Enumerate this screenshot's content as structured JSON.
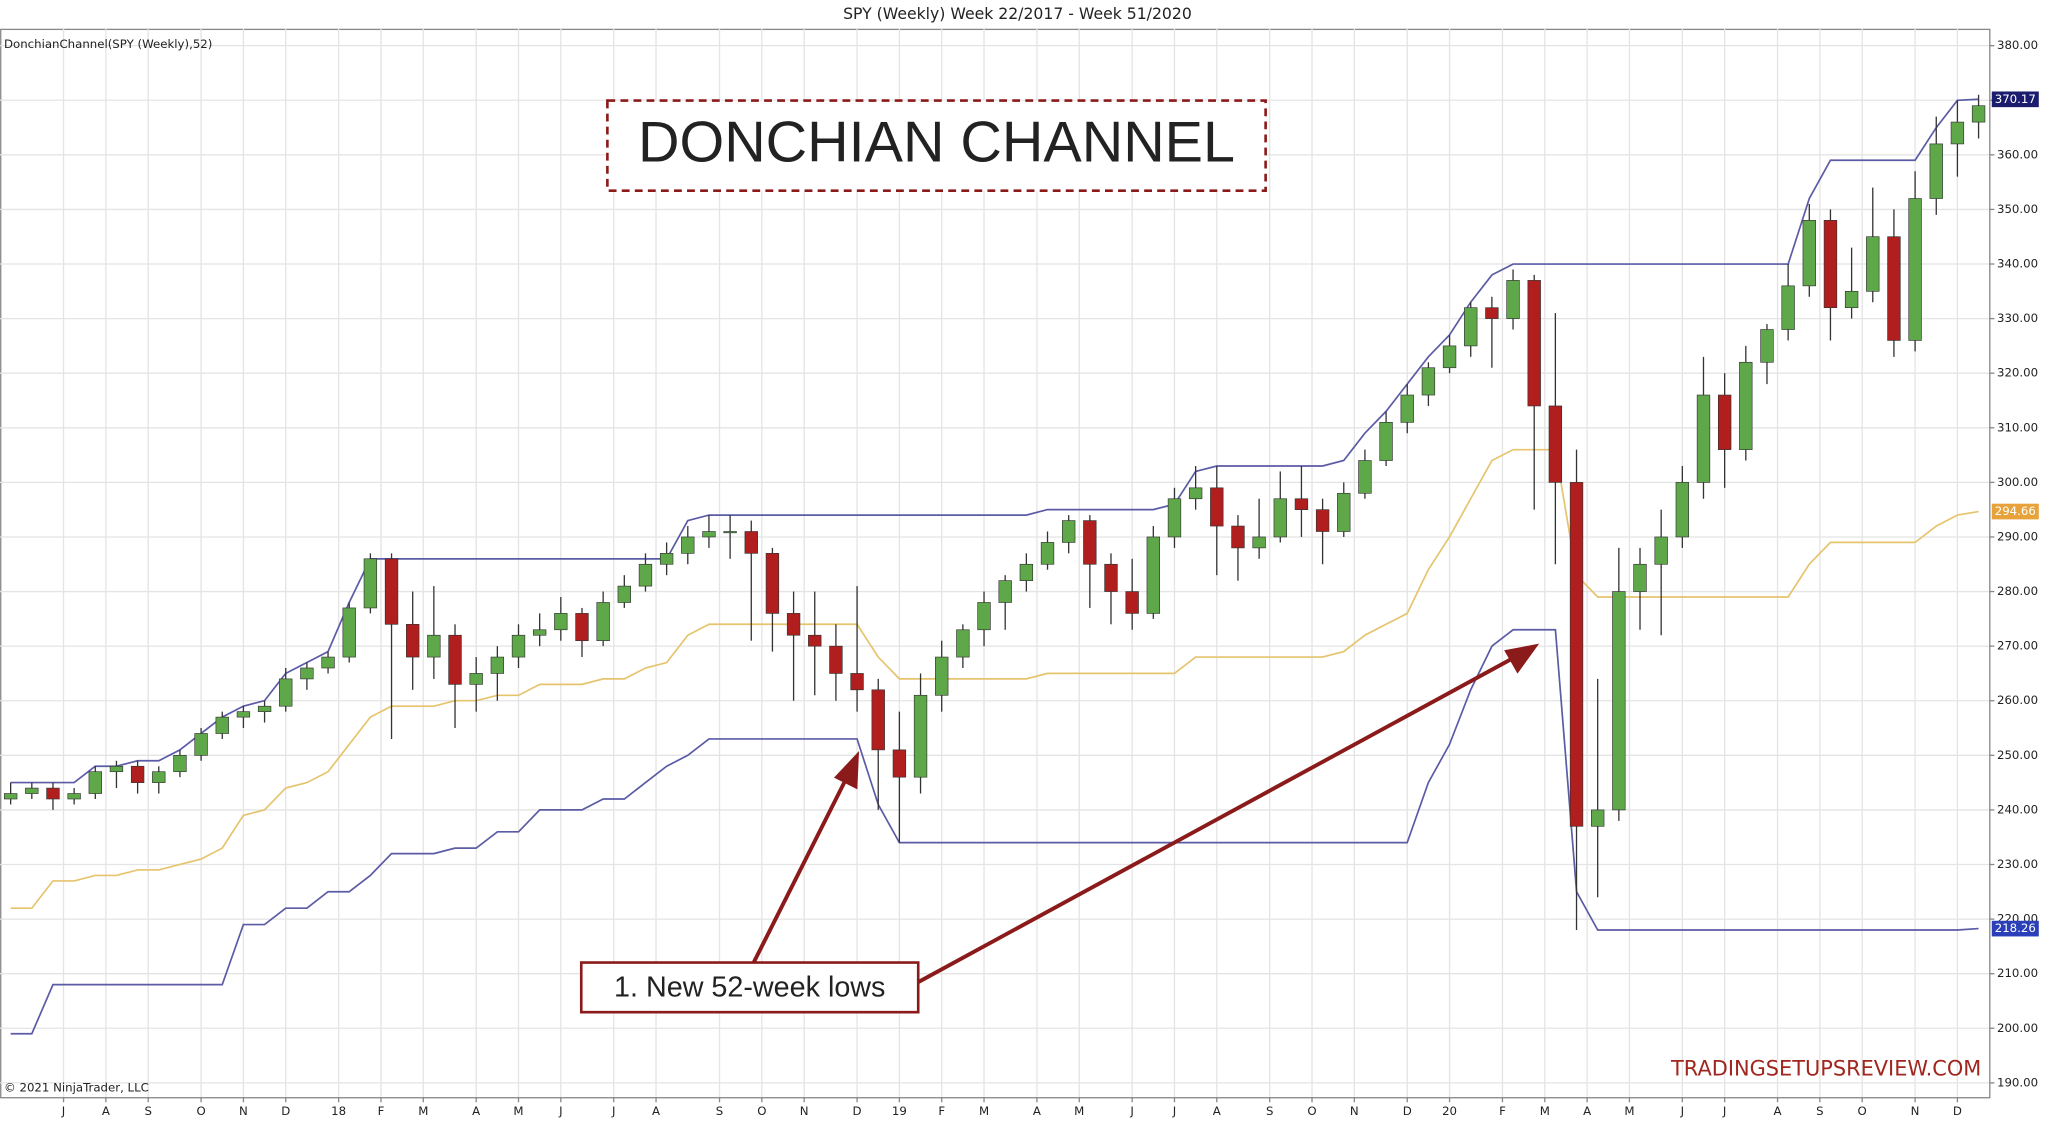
{
  "chart_data": {
    "type": "candlestick",
    "title": "SPY (Weekly)  Week 22/2017 - Week 51/2020",
    "indicator_label": "DonchianChannel(SPY (Weekly),52)",
    "copyright": "© 2021 NinjaTrader, LLC",
    "annotations": {
      "headline": "DONCHIAN CHANNEL",
      "note": "1. New 52-week lows",
      "watermark": "TRADINGSETUPSREVIEW.COM"
    },
    "up_color": "#5fa84a",
    "down_color": "#b01e1e",
    "grid": true,
    "xlim": [
      -1,
      187
    ],
    "ylim": [
      187.4,
      383.1
    ],
    "xticks": [
      {
        "value": 5,
        "label": "J"
      },
      {
        "value": 9,
        "label": "A"
      },
      {
        "value": 13,
        "label": "S"
      },
      {
        "value": 18,
        "label": "O"
      },
      {
        "value": 22,
        "label": "N"
      },
      {
        "value": 26,
        "label": "D"
      },
      {
        "value": 31,
        "label": "18"
      },
      {
        "value": 35,
        "label": "F"
      },
      {
        "value": 39,
        "label": "M"
      },
      {
        "value": 44,
        "label": "A"
      },
      {
        "value": 48,
        "label": "M"
      },
      {
        "value": 52,
        "label": "J"
      },
      {
        "value": 57,
        "label": "J"
      },
      {
        "value": 61,
        "label": "A"
      },
      {
        "value": 67,
        "label": "S"
      },
      {
        "value": 71,
        "label": "O"
      },
      {
        "value": 75,
        "label": "N"
      },
      {
        "value": 80,
        "label": "D"
      },
      {
        "value": 84,
        "label": "19"
      },
      {
        "value": 88,
        "label": "F"
      },
      {
        "value": 92,
        "label": "M"
      },
      {
        "value": 97,
        "label": "A"
      },
      {
        "value": 101,
        "label": "M"
      },
      {
        "value": 106,
        "label": "J"
      },
      {
        "value": 110,
        "label": "J"
      },
      {
        "value": 114,
        "label": "A"
      },
      {
        "value": 119,
        "label": "S"
      },
      {
        "value": 123,
        "label": "O"
      },
      {
        "value": 127,
        "label": "N"
      },
      {
        "value": 132,
        "label": "D"
      },
      {
        "value": 136,
        "label": "20"
      },
      {
        "value": 141,
        "label": "F"
      },
      {
        "value": 145,
        "label": "M"
      },
      {
        "value": 149,
        "label": "A"
      },
      {
        "value": 153,
        "label": "M"
      },
      {
        "value": 158,
        "label": "J"
      },
      {
        "value": 162,
        "label": "J"
      },
      {
        "value": 167,
        "label": "A"
      },
      {
        "value": 171,
        "label": "S"
      },
      {
        "value": 175,
        "label": "O"
      },
      {
        "value": 180,
        "label": "N"
      },
      {
        "value": 184,
        "label": "D"
      }
    ],
    "yticks": [
      {
        "value": 190,
        "label": "190.00"
      },
      {
        "value": 200,
        "label": "200.00"
      },
      {
        "value": 210,
        "label": "210.00"
      },
      {
        "value": 220,
        "label": "220.00"
      },
      {
        "value": 230,
        "label": "230.00"
      },
      {
        "value": 240,
        "label": "240.00"
      },
      {
        "value": 250,
        "label": "250.00"
      },
      {
        "value": 260,
        "label": "260.00"
      },
      {
        "value": 270,
        "label": "270.00"
      },
      {
        "value": 280,
        "label": "280.00"
      },
      {
        "value": 290,
        "label": "290.00"
      },
      {
        "value": 300,
        "label": "300.00"
      },
      {
        "value": 310,
        "label": "310.00"
      },
      {
        "value": 320,
        "label": "320.00"
      },
      {
        "value": 330,
        "label": "330.00"
      },
      {
        "value": 340,
        "label": "340.00"
      },
      {
        "value": 350,
        "label": "350.00"
      },
      {
        "value": 360,
        "label": "360.00"
      },
      {
        "value": 370,
        "label": "370.00"
      },
      {
        "value": 380,
        "label": "380.00"
      }
    ],
    "x": [
      0,
      2,
      4,
      6,
      8,
      10,
      12,
      14,
      16,
      18,
      20,
      22,
      24,
      26,
      28,
      30,
      32,
      34,
      36,
      38,
      40,
      42,
      44,
      46,
      48,
      50,
      52,
      54,
      56,
      58,
      60,
      62,
      64,
      66,
      68,
      70,
      72,
      74,
      76,
      78,
      80,
      82,
      84,
      86,
      88,
      90,
      92,
      94,
      96,
      98,
      100,
      102,
      104,
      106,
      108,
      110,
      112,
      114,
      116,
      118,
      120,
      122,
      124,
      126,
      128,
      130,
      132,
      134,
      136,
      138,
      140,
      142,
      144,
      146,
      148,
      150,
      152,
      154,
      156,
      158,
      160,
      162,
      164,
      166,
      168,
      170,
      172,
      174,
      176,
      178,
      180,
      182,
      184,
      186
    ],
    "ohlc": [
      [
        242,
        245,
        241,
        243
      ],
      [
        243,
        245,
        242,
        244
      ],
      [
        244,
        245,
        240,
        242
      ],
      [
        242,
        244,
        241,
        243
      ],
      [
        243,
        248,
        242,
        247
      ],
      [
        247,
        249,
        244,
        248
      ],
      [
        248,
        249,
        243,
        245
      ],
      [
        245,
        248,
        243,
        247
      ],
      [
        247,
        251,
        246,
        250
      ],
      [
        250,
        255,
        249,
        254
      ],
      [
        254,
        258,
        253,
        257
      ],
      [
        257,
        259,
        255,
        258
      ],
      [
        258,
        260,
        256,
        259
      ],
      [
        259,
        266,
        258,
        264
      ],
      [
        264,
        267,
        262,
        266
      ],
      [
        266,
        269,
        265,
        268
      ],
      [
        268,
        278,
        267,
        277
      ],
      [
        277,
        287,
        276,
        286
      ],
      [
        286,
        287,
        253,
        274
      ],
      [
        274,
        280,
        262,
        268
      ],
      [
        268,
        281,
        264,
        272
      ],
      [
        272,
        274,
        255,
        263
      ],
      [
        263,
        268,
        258,
        265
      ],
      [
        265,
        270,
        260,
        268
      ],
      [
        268,
        274,
        266,
        272
      ],
      [
        272,
        276,
        270,
        273
      ],
      [
        273,
        279,
        271,
        276
      ],
      [
        276,
        277,
        268,
        271
      ],
      [
        271,
        280,
        270,
        278
      ],
      [
        278,
        283,
        277,
        281
      ],
      [
        281,
        287,
        280,
        285
      ],
      [
        285,
        289,
        283,
        287
      ],
      [
        287,
        292,
        285,
        290
      ],
      [
        290,
        294,
        288,
        291
      ],
      [
        291,
        294,
        286,
        291
      ],
      [
        291,
        293,
        271,
        287
      ],
      [
        287,
        288,
        269,
        276
      ],
      [
        276,
        280,
        260,
        272
      ],
      [
        272,
        280,
        261,
        270
      ],
      [
        270,
        274,
        260,
        265
      ],
      [
        265,
        281,
        258,
        262
      ],
      [
        262,
        264,
        240,
        251
      ],
      [
        251,
        258,
        234,
        246
      ],
      [
        246,
        265,
        243,
        261
      ],
      [
        261,
        271,
        258,
        268
      ],
      [
        268,
        274,
        266,
        273
      ],
      [
        273,
        280,
        270,
        278
      ],
      [
        278,
        283,
        273,
        282
      ],
      [
        282,
        287,
        280,
        285
      ],
      [
        285,
        291,
        284,
        289
      ],
      [
        289,
        294,
        287,
        293
      ],
      [
        293,
        294,
        277,
        285
      ],
      [
        285,
        287,
        274,
        280
      ],
      [
        280,
        286,
        273,
        276
      ],
      [
        276,
        292,
        275,
        290
      ],
      [
        290,
        299,
        288,
        297
      ],
      [
        297,
        303,
        295,
        299
      ],
      [
        299,
        303,
        283,
        292
      ],
      [
        292,
        294,
        282,
        288
      ],
      [
        288,
        297,
        286,
        290
      ],
      [
        290,
        302,
        289,
        297
      ],
      [
        297,
        303,
        290,
        295
      ],
      [
        295,
        297,
        285,
        291
      ],
      [
        291,
        300,
        290,
        298
      ],
      [
        298,
        306,
        297,
        304
      ],
      [
        304,
        313,
        303,
        311
      ],
      [
        311,
        318,
        309,
        316
      ],
      [
        316,
        322,
        314,
        321
      ],
      [
        321,
        327,
        320,
        325
      ],
      [
        325,
        333,
        323,
        332
      ],
      [
        332,
        334,
        321,
        330
      ],
      [
        330,
        339,
        328,
        337
      ],
      [
        337,
        338,
        295,
        314
      ],
      [
        314,
        331,
        285,
        300
      ],
      [
        300,
        306,
        218,
        237
      ],
      [
        237,
        264,
        224,
        240
      ],
      [
        240,
        288,
        238,
        280
      ],
      [
        280,
        288,
        273,
        285
      ],
      [
        285,
        295,
        272,
        290
      ],
      [
        290,
        303,
        288,
        300
      ],
      [
        300,
        323,
        297,
        316
      ],
      [
        316,
        320,
        299,
        306
      ],
      [
        306,
        325,
        304,
        322
      ],
      [
        322,
        329,
        318,
        328
      ],
      [
        328,
        340,
        326,
        336
      ],
      [
        336,
        351,
        334,
        348
      ],
      [
        348,
        350,
        326,
        332
      ],
      [
        332,
        343,
        330,
        335
      ],
      [
        335,
        354,
        333,
        345
      ],
      [
        345,
        350,
        323,
        326
      ],
      [
        326,
        357,
        324,
        352
      ],
      [
        352,
        367,
        349,
        362
      ],
      [
        362,
        370,
        356,
        366
      ],
      [
        366,
        371,
        363,
        369
      ]
    ],
    "series": [
      {
        "name": "Upper",
        "color": "#5b5ba6",
        "tag_color": "#1c1c6e",
        "values": [
          245,
          245,
          245,
          245,
          248,
          248,
          249,
          249,
          251,
          254,
          257,
          259,
          260,
          265,
          267,
          269,
          278,
          286,
          286,
          286,
          286,
          286,
          286,
          286,
          286,
          286,
          286,
          286,
          286,
          286,
          286,
          286,
          293,
          294,
          294,
          294,
          294,
          294,
          294,
          294,
          294,
          294,
          294,
          294,
          294,
          294,
          294,
          294,
          294,
          295,
          295,
          295,
          295,
          295,
          295,
          296,
          302,
          303,
          303,
          303,
          303,
          303,
          303,
          304,
          309,
          313,
          318,
          323,
          327,
          333,
          338,
          340,
          340,
          340,
          340,
          340,
          340,
          340,
          340,
          340,
          340,
          340,
          340,
          340,
          340,
          352,
          359,
          359,
          359,
          359,
          359,
          365,
          370,
          370.17
        ]
      },
      {
        "name": "Middle",
        "color": "#e6c46e",
        "tag_color": "#e8a23a",
        "values": [
          222,
          222,
          227,
          227,
          228,
          228,
          229,
          229,
          230,
          231,
          233,
          239,
          240,
          244,
          245,
          247,
          252,
          257,
          259,
          259,
          259,
          260,
          260,
          261,
          261,
          263,
          263,
          263,
          264,
          264,
          266,
          267,
          272,
          274,
          274,
          274,
          274,
          274,
          274,
          274,
          274,
          268,
          264,
          264,
          264,
          264,
          264,
          264,
          264,
          265,
          265,
          265,
          265,
          265,
          265,
          265,
          268,
          268,
          268,
          268,
          268,
          268,
          268,
          269,
          272,
          274,
          276,
          284,
          290,
          297,
          304,
          306,
          306,
          306,
          283,
          279,
          279,
          279,
          279,
          279,
          279,
          279,
          279,
          279,
          279,
          285,
          289,
          289,
          289,
          289,
          289,
          292,
          294,
          294.66
        ]
      },
      {
        "name": "Lower",
        "color": "#5b5ba6",
        "tag_color": "#2a3fb8",
        "values": [
          199,
          199,
          208,
          208,
          208,
          208,
          208,
          208,
          208,
          208,
          208,
          219,
          219,
          222,
          222,
          225,
          225,
          228,
          232,
          232,
          232,
          233,
          233,
          236,
          236,
          240,
          240,
          240,
          242,
          242,
          245,
          248,
          250,
          253,
          253,
          253,
          253,
          253,
          253,
          253,
          253,
          241,
          234,
          234,
          234,
          234,
          234,
          234,
          234,
          234,
          234,
          234,
          234,
          234,
          234,
          234,
          234,
          234,
          234,
          234,
          234,
          234,
          234,
          234,
          234,
          234,
          234,
          245,
          252,
          262,
          270,
          273,
          273,
          273,
          225,
          218,
          218,
          218,
          218,
          218,
          218,
          218,
          218,
          218,
          218,
          218,
          218,
          218,
          218,
          218,
          218,
          218,
          218,
          218.26
        ]
      }
    ]
  }
}
